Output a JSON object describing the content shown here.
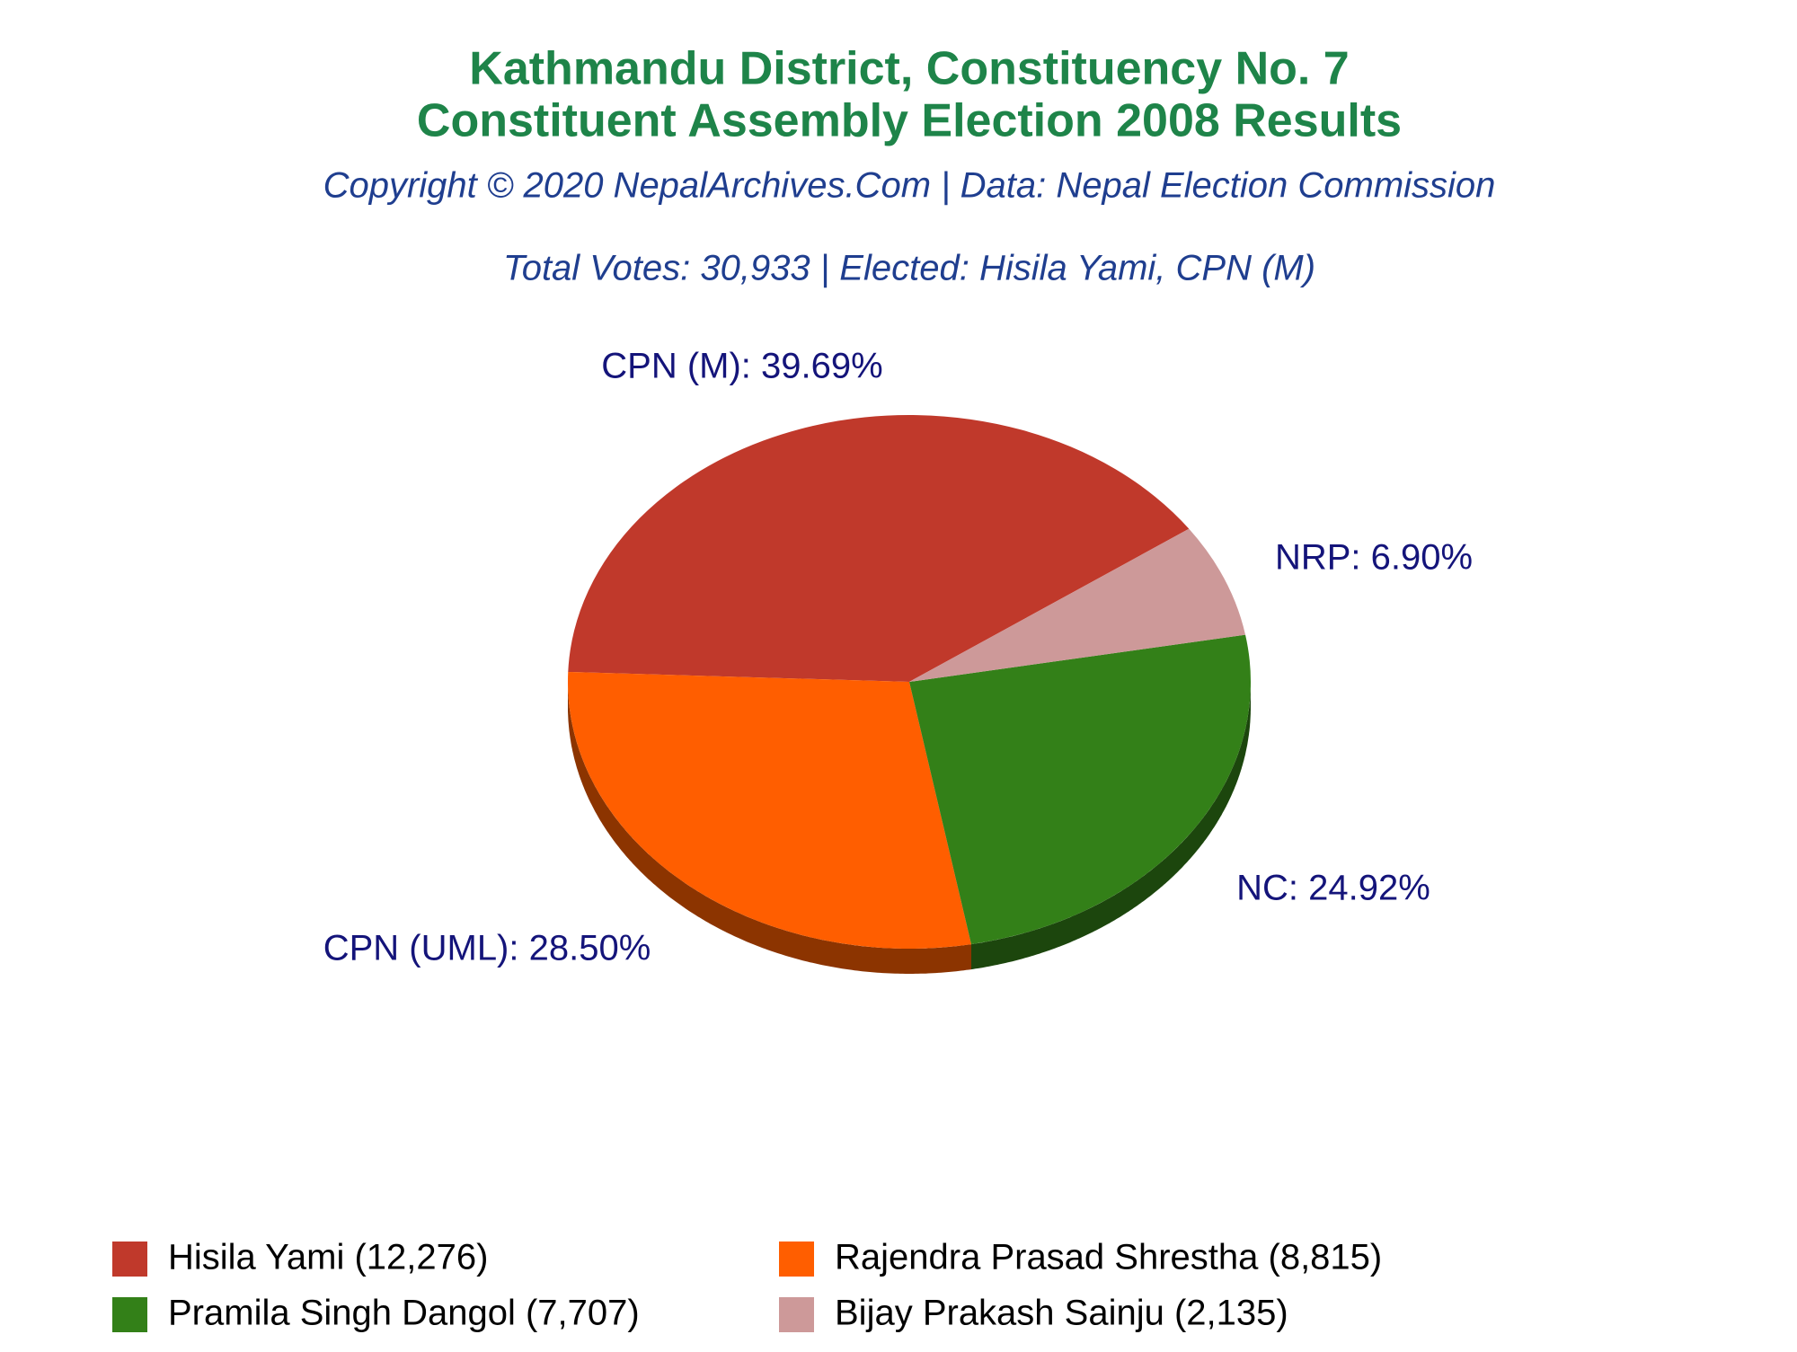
{
  "chart_data": {
    "type": "pie",
    "title": [
      "Kathmandu District, Constituency No. 7",
      "Constituent Assembly Election 2008 Results"
    ],
    "subtitle": "Copyright © 2020 NepalArchives.Com | Data: Nepal Election Commission",
    "annotation": "Total Votes: 30,933 | Elected: Hisila Yami, CPN (M)",
    "categories": [
      "Hisila Yami (12,276)",
      "Rajendra Prasad Shrestha (8,815)",
      "Pramila Singh Dangol (7,707)",
      "Bijay Prakash Sainju (2,135)"
    ],
    "values": [
      39.69,
      28.5,
      24.92,
      6.9
    ],
    "value_labels": [
      "CPN (M): 39.69%",
      "CPN (UML): 28.50%",
      "NC: 24.92%",
      "NRP: 6.90%"
    ],
    "colors": [
      "#c0392b",
      "#ff5e00",
      "#338018",
      "#cd9999"
    ],
    "legend": "bottom"
  }
}
